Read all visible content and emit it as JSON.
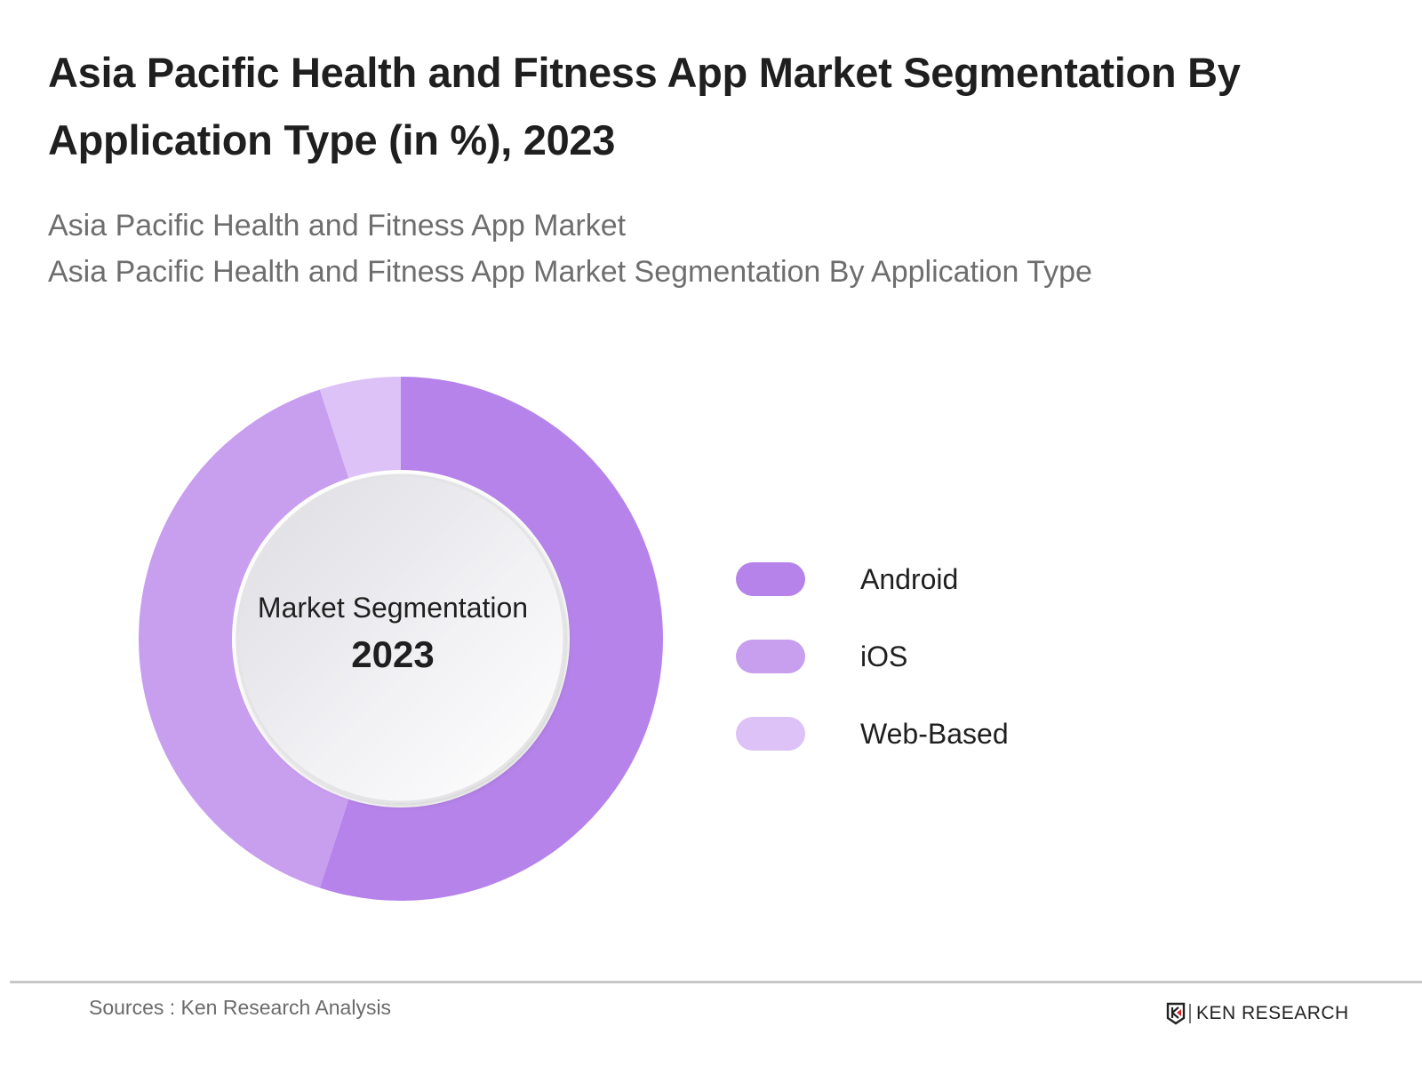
{
  "header": {
    "title": "Asia Pacific Health and Fitness App Market Segmentation By Application Type (in %), 2023",
    "subtitle_lines": [
      "Asia Pacific Health and Fitness App Market",
      "Asia Pacific Health and Fitness App Market Segmentation By Application Type"
    ]
  },
  "center_label": {
    "line1": "Market Segmentation",
    "line2": "2023"
  },
  "legend": [
    {
      "label": "Android",
      "color": "#B583EA"
    },
    {
      "label": "iOS",
      "color": "#C89EEE"
    },
    {
      "label": "Web-Based",
      "color": "#DDC2F7"
    }
  ],
  "footer": {
    "sources": "Sources : Ken Research Analysis",
    "brand": "KEN RESEARCH"
  },
  "chart_data": {
    "type": "pie",
    "variant": "donut",
    "title": "Asia Pacific Health and Fitness App Market Segmentation By Application Type (in %), 2023",
    "subtitle": "Asia Pacific Health and Fitness App Market / Asia Pacific Health and Fitness App Market Segmentation By Application Type",
    "categories": [
      "Android",
      "iOS",
      "Web-Based"
    ],
    "values": [
      55,
      40,
      5
    ],
    "unit": "%",
    "colors": [
      "#B583EA",
      "#C89EEE",
      "#DDC2F7"
    ],
    "center_text": [
      "Market Segmentation",
      "2023"
    ],
    "legend_position": "right",
    "data_labels": false,
    "source": "Sources : Ken Research Analysis"
  }
}
